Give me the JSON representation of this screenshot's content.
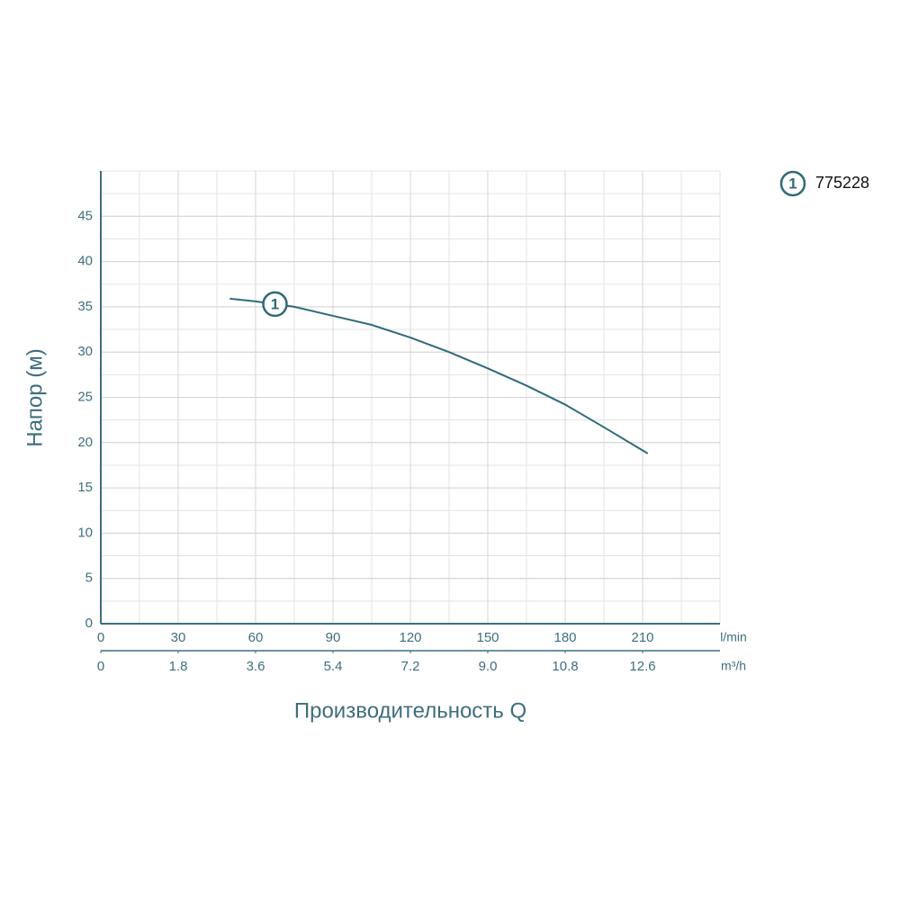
{
  "chart_data": {
    "type": "line",
    "y_label": "Напор (м)",
    "x_label": "Производительность Q",
    "x_unit": "l/min",
    "x2_unit": "m³/h",
    "x": [
      50,
      60,
      75,
      90,
      105,
      120,
      135,
      150,
      165,
      180,
      195,
      212
    ],
    "series": [
      {
        "name": "775228",
        "marker": "1",
        "color": "#2e6b7a",
        "values": [
          35.9,
          35.6,
          35.0,
          34.0,
          33.0,
          31.6,
          30.0,
          28.2,
          26.3,
          24.2,
          21.7,
          18.8
        ]
      }
    ],
    "xlim": [
      0,
      240
    ],
    "xticks": [
      0,
      30,
      60,
      90,
      120,
      150,
      180,
      210
    ],
    "x2lim": [
      0,
      14.4
    ],
    "x2ticks": [
      0,
      1.8,
      3.6,
      5.4,
      7.2,
      {
        "value": 9,
        "label": "9.0"
      },
      10.8,
      12.6
    ],
    "ylim": [
      0,
      50
    ],
    "yticks": [
      0,
      5,
      10,
      15,
      20,
      25,
      30,
      35,
      40,
      45
    ],
    "grid": true,
    "minor_grid": true,
    "legend": "top-right"
  }
}
